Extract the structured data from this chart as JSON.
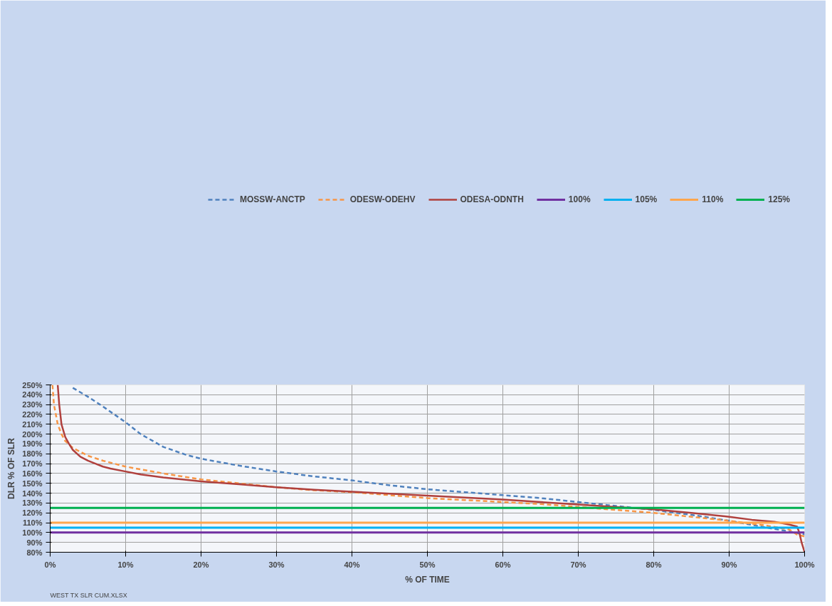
{
  "chart_data": {
    "type": "line",
    "xlabel": "% OF TIME",
    "ylabel": "DLR % OF SLR",
    "annotations": [
      "WEST TX SLR CUM.XLSX"
    ],
    "xlim": [
      0,
      100
    ],
    "ylim": [
      80,
      250
    ],
    "xticks": [
      {
        "value": 0,
        "label": "0%"
      },
      {
        "value": 10,
        "label": "10%"
      },
      {
        "value": 20,
        "label": "20%"
      },
      {
        "value": 30,
        "label": "30%"
      },
      {
        "value": 40,
        "label": "40%"
      },
      {
        "value": 50,
        "label": "50%"
      },
      {
        "value": 60,
        "label": "60%"
      },
      {
        "value": 70,
        "label": "70%"
      },
      {
        "value": 80,
        "label": "80%"
      },
      {
        "value": 90,
        "label": "90%"
      },
      {
        "value": 100,
        "label": "100%"
      }
    ],
    "yticks": [
      {
        "value": 80,
        "label": "80%"
      },
      {
        "value": 90,
        "label": "90%"
      },
      {
        "value": 100,
        "label": "100%"
      },
      {
        "value": 110,
        "label": "110%"
      },
      {
        "value": 120,
        "label": "120%"
      },
      {
        "value": 130,
        "label": "130%"
      },
      {
        "value": 140,
        "label": "140%"
      },
      {
        "value": 150,
        "label": "150%"
      },
      {
        "value": 160,
        "label": "160%"
      },
      {
        "value": 170,
        "label": "170%"
      },
      {
        "value": 180,
        "label": "180%"
      },
      {
        "value": 190,
        "label": "190%"
      },
      {
        "value": 200,
        "label": "200%"
      },
      {
        "value": 210,
        "label": "210%"
      },
      {
        "value": 220,
        "label": "220%"
      },
      {
        "value": 230,
        "label": "230%"
      },
      {
        "value": 240,
        "label": "240%"
      },
      {
        "value": 250,
        "label": "250%"
      }
    ],
    "grid": true,
    "legend": "top",
    "marker": "none",
    "series": [
      {
        "name": "MOSSW-ANCTP",
        "color": "#4f81bd",
        "line_style": "dashed",
        "x": [
          3,
          5,
          7,
          10,
          12,
          15,
          18,
          20,
          25,
          30,
          35,
          40,
          45,
          50,
          55,
          60,
          65,
          70,
          75,
          80,
          85,
          90,
          95,
          98,
          100
        ],
        "values": [
          247,
          238,
          228,
          212,
          200,
          187,
          179,
          175,
          168,
          162,
          157,
          153,
          148,
          144,
          141,
          138,
          135,
          131,
          127,
          123,
          118,
          112,
          105,
          101,
          98
        ]
      },
      {
        "name": "ODESW-ODEHV",
        "color": "#f79646",
        "line_style": "dashed",
        "x": [
          0.3,
          0.5,
          1,
          1.5,
          2,
          3,
          4,
          5,
          7,
          10,
          15,
          20,
          25,
          30,
          35,
          40,
          45,
          50,
          55,
          60,
          65,
          70,
          75,
          80,
          85,
          90,
          95,
          98,
          99,
          100
        ],
        "values": [
          250,
          230,
          210,
          200,
          193,
          186,
          182,
          178,
          173,
          167,
          160,
          154,
          150,
          146,
          143,
          141,
          138,
          135,
          133,
          131,
          129,
          126,
          123,
          120,
          116,
          112,
          107,
          103,
          98,
          96
        ]
      },
      {
        "name": "ODESA-ODNTH",
        "color": "#b0403d",
        "line_style": "solid",
        "x": [
          1,
          1.2,
          1.5,
          2,
          2.5,
          3,
          4,
          5,
          6,
          7,
          8,
          10,
          12,
          15,
          20,
          25,
          30,
          35,
          40,
          45,
          50,
          55,
          60,
          65,
          70,
          75,
          80,
          85,
          90,
          93,
          96,
          98,
          99,
          99.3,
          99.6,
          100
        ],
        "values": [
          250,
          230,
          210,
          197,
          190,
          184,
          177,
          173,
          170,
          167,
          165,
          162,
          159,
          156,
          152,
          149,
          146,
          143.5,
          141.5,
          139.5,
          137.5,
          135.5,
          133.5,
          131,
          128.5,
          126,
          123.5,
          120,
          116,
          113,
          111,
          108,
          106,
          100,
          90,
          80
        ]
      }
    ],
    "ref_lines": [
      {
        "axis": "y",
        "value": 100,
        "label": "100%",
        "color": "#7030a0"
      },
      {
        "axis": "y",
        "value": 105,
        "label": "105%",
        "color": "#00b0f0"
      },
      {
        "axis": "y",
        "value": 110,
        "label": "110%",
        "color": "#ffa64d"
      },
      {
        "axis": "y",
        "value": 125,
        "label": "125%",
        "color": "#00b050"
      }
    ]
  }
}
